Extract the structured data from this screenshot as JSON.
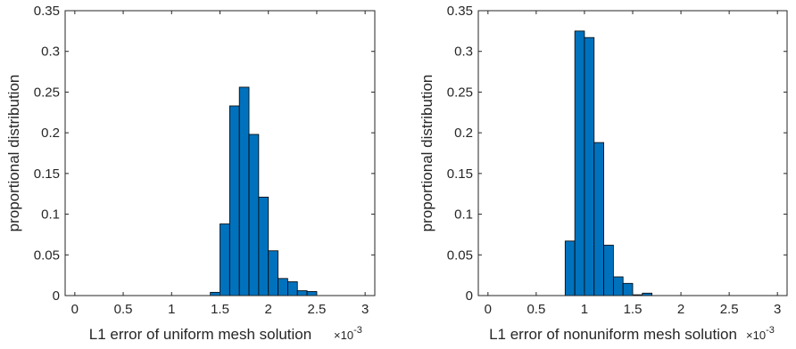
{
  "chart_data": [
    {
      "type": "bar",
      "xlabel": "L1 error of uniform mesh solution",
      "x_multiplier": "×10^-3",
      "ylabel": "proportional distribution",
      "xlim": [
        -0.1,
        3.1
      ],
      "ylim": [
        0,
        0.35
      ],
      "xticks": [
        0,
        0.5,
        1,
        1.5,
        2,
        2.5,
        3
      ],
      "yticks": [
        0,
        0.05,
        0.1,
        0.15,
        0.2,
        0.25,
        0.3,
        0.35
      ],
      "xtick_labels": [
        "0",
        "0.5",
        "1",
        "1.5",
        "2",
        "2.5",
        "3"
      ],
      "ytick_labels": [
        "0",
        "0.05",
        "0.1",
        "0.15",
        "0.2",
        "0.25",
        "0.3",
        "0.35"
      ],
      "bin_width": 0.1,
      "x": [
        1.45,
        1.55,
        1.65,
        1.75,
        1.85,
        1.95,
        2.05,
        2.15,
        2.25,
        2.35,
        2.45
      ],
      "values": [
        0.004,
        0.088,
        0.233,
        0.256,
        0.198,
        0.121,
        0.055,
        0.021,
        0.017,
        0.006,
        0.005
      ],
      "color": "#0072BD"
    },
    {
      "type": "bar",
      "xlabel": "L1 error of nonuniform mesh solution",
      "x_multiplier": "×10^-3",
      "ylabel": "proportional distribution",
      "xlim": [
        -0.1,
        3.1
      ],
      "ylim": [
        0,
        0.35
      ],
      "xticks": [
        0,
        0.5,
        1,
        1.5,
        2,
        2.5,
        3
      ],
      "yticks": [
        0,
        0.05,
        0.1,
        0.15,
        0.2,
        0.25,
        0.3,
        0.35
      ],
      "xtick_labels": [
        "0",
        "0.5",
        "1",
        "1.5",
        "2",
        "2.5",
        "3"
      ],
      "ytick_labels": [
        "0",
        "0.05",
        "0.1",
        "0.15",
        "0.2",
        "0.25",
        "0.3",
        "0.35"
      ],
      "bin_width": 0.1,
      "x": [
        0.85,
        0.95,
        1.05,
        1.15,
        1.25,
        1.35,
        1.45,
        1.55,
        1.65
      ],
      "values": [
        0.067,
        0.325,
        0.317,
        0.188,
        0.062,
        0.023,
        0.015,
        0.001,
        0.003
      ],
      "color": "#0072BD"
    }
  ]
}
